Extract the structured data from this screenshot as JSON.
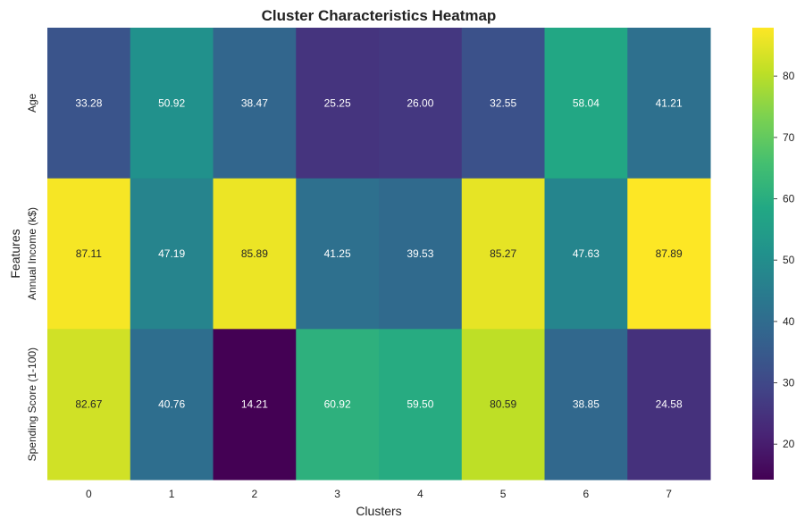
{
  "chart_data": {
    "type": "heatmap",
    "title": "Cluster Characteristics Heatmap",
    "xlabel": "Clusters",
    "ylabel": "Features",
    "x_categories": [
      "0",
      "1",
      "2",
      "3",
      "4",
      "5",
      "6",
      "7"
    ],
    "y_categories": [
      "Age",
      "Annual Income (k$)",
      "Spending Score (1-100)"
    ],
    "values": [
      [
        33.28,
        50.92,
        38.47,
        25.25,
        26.0,
        32.55,
        58.04,
        41.21
      ],
      [
        87.11,
        47.19,
        85.89,
        41.25,
        39.53,
        85.27,
        47.63,
        87.89
      ],
      [
        82.67,
        40.76,
        14.21,
        60.92,
        59.5,
        80.59,
        38.85,
        24.58
      ]
    ],
    "value_format": "2 decimals",
    "colormap": "viridis",
    "colorbar": {
      "min": 14.21,
      "max": 87.89,
      "ticks": [
        20,
        30,
        40,
        50,
        60,
        70,
        80
      ]
    }
  }
}
